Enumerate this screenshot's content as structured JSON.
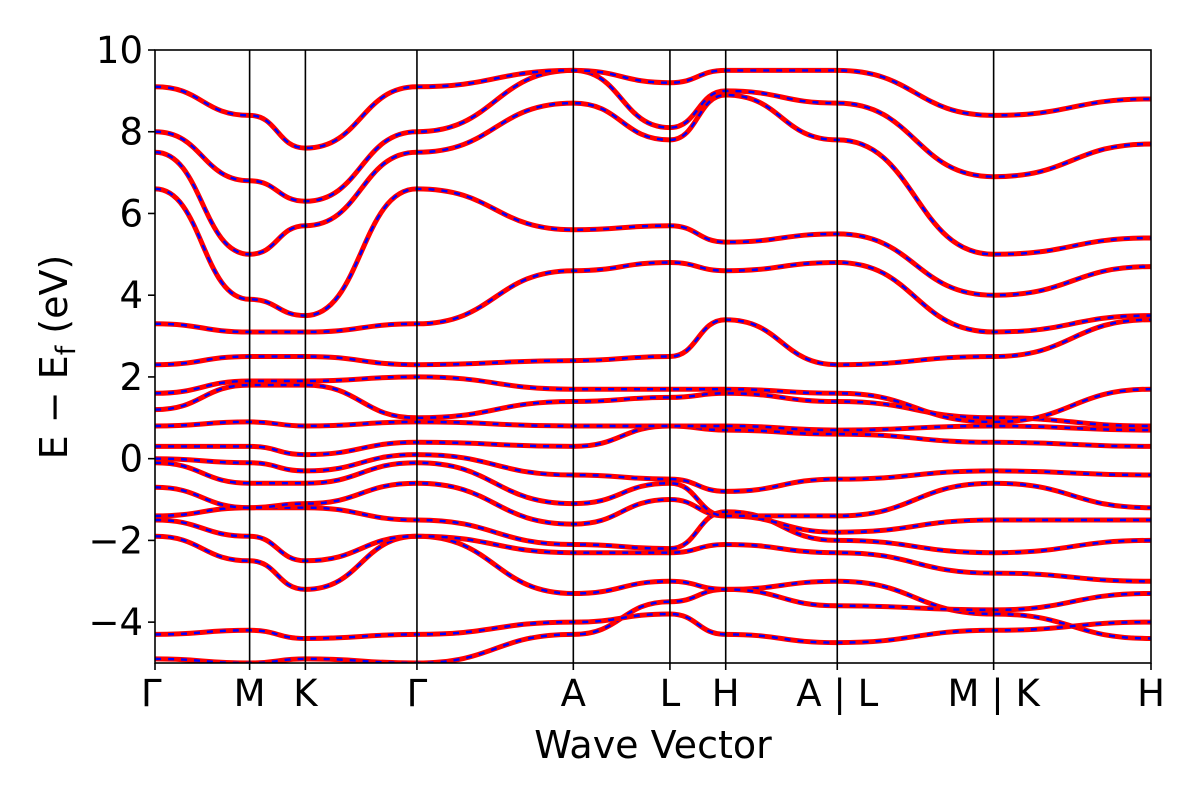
{
  "chart_data": {
    "type": "line",
    "title": "",
    "xlabel": "Wave Vector",
    "ylabel_main": "E − E",
    "ylabel_sub": "f",
    "ylabel_unit": " (eV)",
    "ylim": [
      -5,
      10
    ],
    "yticks": [
      10,
      8,
      6,
      4,
      2,
      0,
      -2,
      -4
    ],
    "ytick_labels": [
      "10",
      "8",
      "6",
      "4",
      "2",
      "0",
      "−2",
      "−4"
    ],
    "kpath": [
      {
        "label": "Γ",
        "x": 0.0
      },
      {
        "label": "M",
        "x": 0.095
      },
      {
        "label": "K",
        "x": 0.151
      },
      {
        "label": "Γ",
        "x": 0.263
      },
      {
        "label": "A",
        "x": 0.42
      },
      {
        "label": "L",
        "x": 0.517
      },
      {
        "label": "H",
        "x": 0.573
      },
      {
        "label": "A | L",
        "x": 0.685
      },
      {
        "label": "M | K",
        "x": 0.842
      },
      {
        "label": "H",
        "x": 1.0
      }
    ],
    "grid": false,
    "colors": {
      "band_primary": "#ff0000",
      "band_overlay": "#0000ff",
      "frame": "#000000"
    },
    "series": [
      {
        "values": [
          -4.9,
          -5.0,
          -4.9,
          -5.0,
          -4.3,
          -3.5,
          -3.2,
          -3.0,
          -3.8,
          -4.4
        ]
      },
      {
        "values": [
          -4.3,
          -4.2,
          -4.4,
          -4.3,
          -4.0,
          -3.8,
          -4.3,
          -4.5,
          -4.2,
          -4.0
        ]
      },
      {
        "values": [
          -1.9,
          -2.5,
          -3.2,
          -1.9,
          -3.3,
          -3.0,
          -3.2,
          -3.6,
          -3.7,
          -3.3
        ]
      },
      {
        "values": [
          -1.5,
          -1.9,
          -2.5,
          -1.9,
          -2.3,
          -2.3,
          -2.1,
          -2.3,
          -2.8,
          -3.0
        ]
      },
      {
        "values": [
          -1.4,
          -1.2,
          -1.2,
          -1.5,
          -2.1,
          -2.2,
          -1.3,
          -2.0,
          -2.3,
          -2.0
        ]
      },
      {
        "values": [
          -0.7,
          -1.2,
          -1.1,
          -0.6,
          -1.6,
          -1.0,
          -1.4,
          -1.8,
          -1.5,
          -1.5
        ]
      },
      {
        "values": [
          -0.1,
          -0.6,
          -0.6,
          -0.1,
          -1.1,
          -0.6,
          -1.4,
          -1.4,
          -0.6,
          -1.2
        ]
      },
      {
        "values": [
          0.0,
          -0.1,
          -0.3,
          0.1,
          -0.4,
          -0.5,
          -0.8,
          -0.5,
          -0.3,
          -0.4
        ]
      },
      {
        "values": [
          0.3,
          0.3,
          0.1,
          0.4,
          0.3,
          0.8,
          0.7,
          0.6,
          0.4,
          0.3
        ]
      },
      {
        "values": [
          0.8,
          0.9,
          0.8,
          0.9,
          0.8,
          0.8,
          0.8,
          0.7,
          0.8,
          0.7
        ]
      },
      {
        "values": [
          1.2,
          1.8,
          1.8,
          1.0,
          1.4,
          1.5,
          1.6,
          1.4,
          1.0,
          0.8
        ]
      },
      {
        "values": [
          1.6,
          1.9,
          1.9,
          2.0,
          1.7,
          1.7,
          1.7,
          1.6,
          0.9,
          1.7
        ]
      },
      {
        "values": [
          2.3,
          2.5,
          2.5,
          2.3,
          2.4,
          2.5,
          3.4,
          2.3,
          2.5,
          3.4
        ]
      },
      {
        "values": [
          3.3,
          3.1,
          3.1,
          3.3,
          4.6,
          4.8,
          4.6,
          4.8,
          3.1,
          3.5
        ]
      },
      {
        "values": [
          6.6,
          3.9,
          3.5,
          6.6,
          5.6,
          5.7,
          5.3,
          5.5,
          4.0,
          4.7
        ]
      },
      {
        "values": [
          7.5,
          5.0,
          5.7,
          7.5,
          8.7,
          7.8,
          8.9,
          7.8,
          5.0,
          5.4
        ]
      },
      {
        "values": [
          8.0,
          6.8,
          6.3,
          8.0,
          9.5,
          8.1,
          9.0,
          8.7,
          6.9,
          7.7
        ]
      },
      {
        "values": [
          9.1,
          8.4,
          7.6,
          9.1,
          9.5,
          9.2,
          9.5,
          9.5,
          8.4,
          8.8
        ]
      }
    ]
  }
}
